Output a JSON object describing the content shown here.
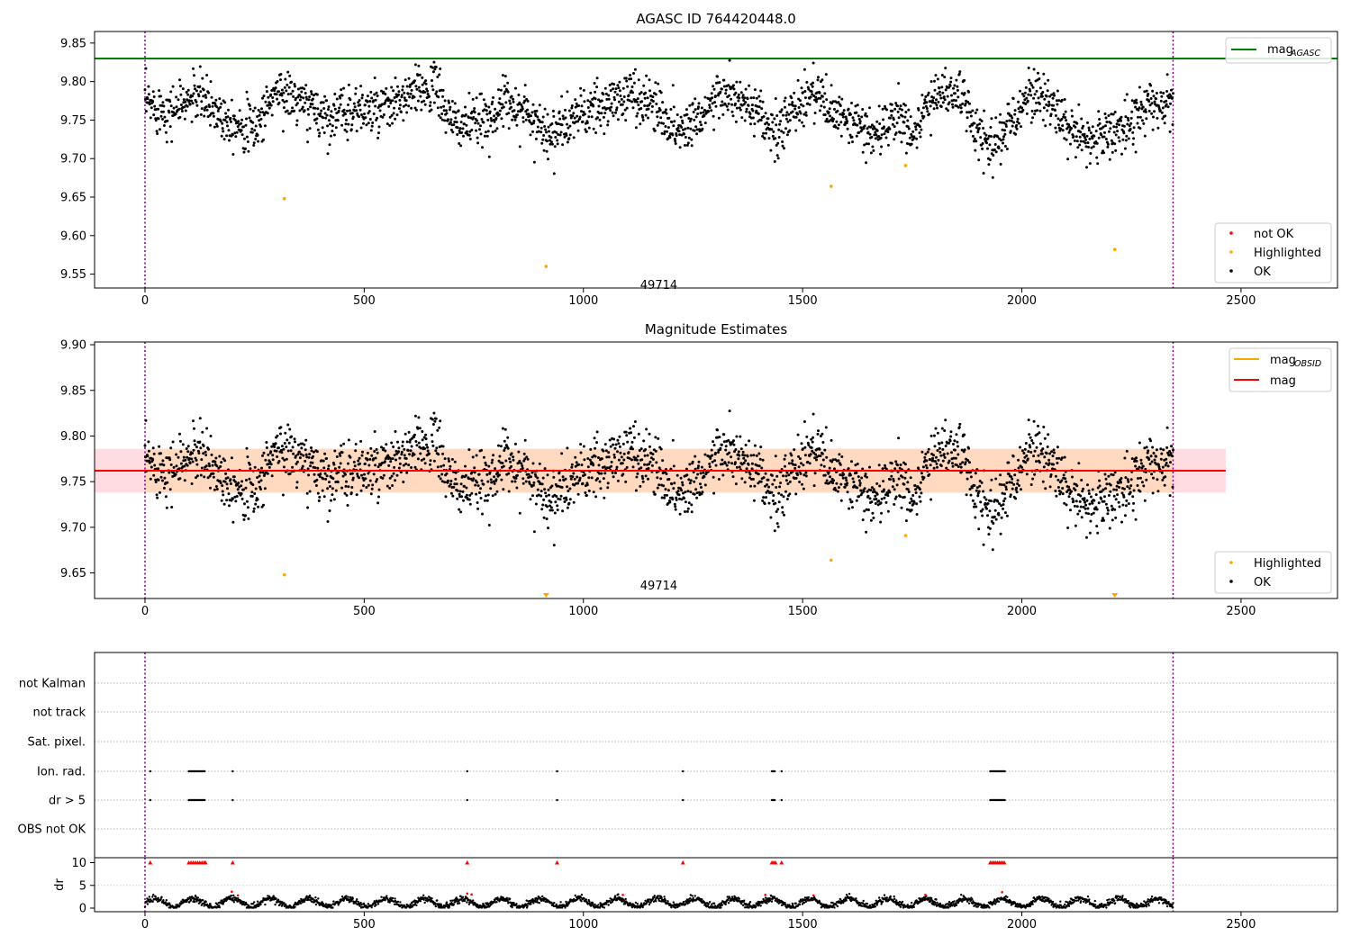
{
  "chart_data": [
    {
      "type": "scatter",
      "title": "AGASC ID 764420448.0",
      "xlim": [
        -115,
        2720
      ],
      "ylim": [
        9.532,
        9.865
      ],
      "x_ticks": [
        0,
        500,
        1000,
        1500,
        2000,
        2500
      ],
      "y_ticks": [
        9.55,
        9.6,
        9.65,
        9.7,
        9.75,
        9.8,
        9.85
      ],
      "y_tick_labels": [
        "9.55",
        "9.60",
        "9.65",
        "9.70",
        "9.75",
        "9.80",
        "9.85"
      ],
      "obs_boundaries": [
        0,
        2345
      ],
      "obsid_label": {
        "text": "49714",
        "x": 1172,
        "y": 9.54
      },
      "reference_line": {
        "name": "mag_AGASC",
        "value": 9.83,
        "color": "#008000"
      },
      "legends": [
        {
          "position": "top-right",
          "entries": [
            {
              "label": "mag",
              "sub": "AGASC",
              "kind": "line",
              "color": "#008000"
            }
          ]
        },
        {
          "position": "bottom-right",
          "entries": [
            {
              "label": "not OK",
              "kind": "dot",
              "color": "#ff0000"
            },
            {
              "label": "Highlighted",
              "kind": "dot",
              "color": "#ffa500"
            },
            {
              "label": "OK",
              "kind": "dot",
              "color": "#000000"
            }
          ]
        }
      ],
      "series": [
        {
          "name": "OK",
          "color": "#000000",
          "n_points": 2345,
          "x_range": [
            0,
            2345
          ],
          "y_profile": [
            [
              0,
              9.772
            ],
            [
              60,
              9.762
            ],
            [
              120,
              9.782
            ],
            [
              180,
              9.755
            ],
            [
              250,
              9.738
            ],
            [
              300,
              9.79
            ],
            [
              360,
              9.77
            ],
            [
              420,
              9.755
            ],
            [
              480,
              9.765
            ],
            [
              540,
              9.76
            ],
            [
              600,
              9.78
            ],
            [
              660,
              9.795
            ],
            [
              700,
              9.745
            ],
            [
              760,
              9.745
            ],
            [
              830,
              9.775
            ],
            [
              880,
              9.755
            ],
            [
              930,
              9.73
            ],
            [
              980,
              9.755
            ],
            [
              1040,
              9.765
            ],
            [
              1100,
              9.785
            ],
            [
              1160,
              9.77
            ],
            [
              1220,
              9.735
            ],
            [
              1270,
              9.76
            ],
            [
              1320,
              9.785
            ],
            [
              1380,
              9.765
            ],
            [
              1440,
              9.73
            ],
            [
              1490,
              9.77
            ],
            [
              1530,
              9.79
            ],
            [
              1570,
              9.755
            ],
            [
              1620,
              9.745
            ],
            [
              1670,
              9.73
            ],
            [
              1710,
              9.755
            ],
            [
              1760,
              9.735
            ],
            [
              1800,
              9.785
            ],
            [
              1860,
              9.785
            ],
            [
              1900,
              9.73
            ],
            [
              1930,
              9.72
            ],
            [
              1970,
              9.74
            ],
            [
              2020,
              9.79
            ],
            [
              2080,
              9.765
            ],
            [
              2130,
              9.72
            ],
            [
              2180,
              9.73
            ],
            [
              2230,
              9.74
            ],
            [
              2280,
              9.765
            ],
            [
              2345,
              9.775
            ]
          ],
          "y_spread": 0.016
        },
        {
          "name": "Highlighted",
          "color": "#ffa500",
          "points": [
            [
              318,
              9.648
            ],
            [
              915,
              9.56
            ],
            [
              1565,
              9.664
            ],
            [
              1735,
              9.691
            ],
            [
              2212,
              9.582
            ]
          ]
        }
      ]
    },
    {
      "type": "scatter",
      "title": "Magnitude Estimates",
      "xlim": [
        -115,
        2720
      ],
      "ylim": [
        9.622,
        9.903
      ],
      "x_ticks": [
        0,
        500,
        1000,
        1500,
        2000,
        2500
      ],
      "y_ticks": [
        9.65,
        9.7,
        9.75,
        9.8,
        9.85,
        9.9
      ],
      "y_tick_labels": [
        "9.65",
        "9.70",
        "9.75",
        "9.80",
        "9.85",
        "9.90"
      ],
      "obs_boundaries": [
        0,
        2345
      ],
      "obsid_label": {
        "text": "49714",
        "x": 1172,
        "y": 9.628
      },
      "mag": {
        "value": 9.762,
        "color": "#ff0000",
        "band": [
          9.738,
          9.786
        ],
        "band_color": "#ffc0cb",
        "x_range": [
          -115,
          2465
        ]
      },
      "mag_obsid": {
        "value": 9.762,
        "color": "#ffa500",
        "band": [
          9.738,
          9.786
        ],
        "band_color": "#ffdab9",
        "x_range": [
          0,
          2345
        ]
      },
      "legends": [
        {
          "position": "top-right",
          "entries": [
            {
              "label": "mag",
              "sub": "OBSID",
              "kind": "line",
              "color": "#ffa500"
            },
            {
              "label": "mag",
              "kind": "line",
              "color": "#ff0000"
            }
          ]
        },
        {
          "position": "bottom-right",
          "entries": [
            {
              "label": "Highlighted",
              "kind": "dot",
              "color": "#ffa500"
            },
            {
              "label": "OK",
              "kind": "dot",
              "color": "#000000"
            }
          ]
        }
      ],
      "series": [
        {
          "name": "OK",
          "color": "#000000",
          "reuse_from_chart": 0
        },
        {
          "name": "Highlighted",
          "color": "#ffa500",
          "points": [
            [
              318,
              9.648
            ],
            [
              1565,
              9.664
            ],
            [
              1735,
              9.691
            ]
          ],
          "clipped_markers": [
            915,
            2212
          ]
        }
      ]
    },
    {
      "type": "scatter",
      "xlim": [
        -115,
        2720
      ],
      "flag_rows": [
        "not Kalman",
        "not track",
        "Sat. pixel.",
        "Ion. rad.",
        "dr > 5",
        "OBS not OK"
      ],
      "flag_events": {
        "Ion. rad.": [
          [
            12,
            14
          ],
          [
            100,
            138
          ],
          [
            200,
            202
          ],
          [
            735,
            737
          ],
          [
            940,
            941
          ],
          [
            1227,
            1228
          ],
          [
            1430,
            1438
          ],
          [
            1452,
            1453
          ],
          [
            1928,
            1962
          ]
        ],
        "dr > 5": [
          [
            12,
            14
          ],
          [
            100,
            138
          ],
          [
            200,
            202
          ],
          [
            735,
            737
          ],
          [
            940,
            941
          ],
          [
            1227,
            1228
          ],
          [
            1430,
            1438
          ],
          [
            1452,
            1453
          ],
          [
            1928,
            1962
          ]
        ]
      },
      "x_ticks": [
        0,
        500,
        1000,
        1500,
        2000,
        2500
      ],
      "obs_boundaries": [
        0,
        2345
      ]
    },
    {
      "type": "scatter",
      "ylabel": "dr",
      "xlim": [
        -115,
        2720
      ],
      "ylim": [
        -0.5,
        10.5
      ],
      "x_ticks": [
        0,
        500,
        1000,
        1500,
        2000,
        2500
      ],
      "y_ticks": [
        0,
        5,
        10
      ],
      "obs_boundaries": [
        0,
        2345
      ],
      "dr_clip": 10,
      "series": [
        {
          "name": "OK",
          "color": "#000000",
          "n_points": 2345,
          "y_range": [
            0,
            2.8
          ]
        },
        {
          "name": "not OK",
          "color": "#ff0000",
          "points": [
            [
              198,
              3.6
            ],
            [
              212,
              2.8
            ],
            [
              735,
              3.2
            ],
            [
              745,
              3.0
            ],
            [
              1090,
              2.9
            ],
            [
              1415,
              2.9
            ],
            [
              1525,
              2.8
            ],
            [
              1780,
              2.9
            ],
            [
              1955,
              3.5
            ]
          ],
          "clipped_at_10": [
            12,
            100,
            105,
            110,
            115,
            120,
            125,
            130,
            135,
            138,
            200,
            735,
            940,
            1227,
            1430,
            1434,
            1438,
            1452,
            1928,
            1932,
            1936,
            1940,
            1944,
            1948,
            1952,
            1956,
            1960
          ]
        }
      ]
    }
  ]
}
